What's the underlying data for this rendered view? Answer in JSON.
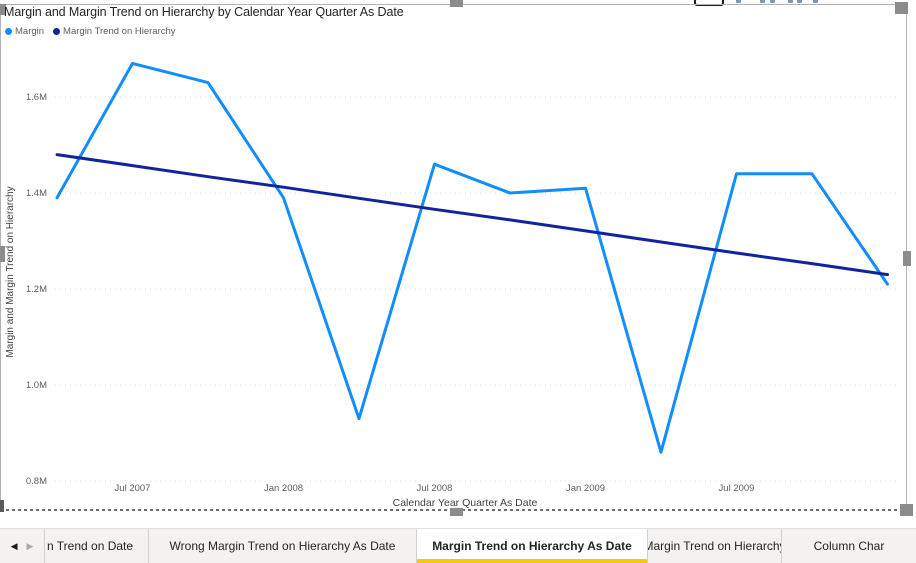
{
  "visual": {
    "title": "Margin and Margin Trend on Hierarchy by Calendar Year Quarter As Date",
    "legend": [
      {
        "label": "Margin",
        "color": "#118DFF"
      },
      {
        "label": "Margin Trend on Hierarchy",
        "color": "#12239E"
      }
    ],
    "y_axis_title": "Margin and Margin Trend on Hierarchy",
    "x_axis_title": "Calendar Year Quarter As Date",
    "header_icons": [
      "focus-mode-icon",
      "pin-icon",
      "filter-icon",
      "more-options-icon"
    ]
  },
  "chart_data": {
    "type": "line",
    "categories": [
      "Apr 2007",
      "Jul 2007",
      "Oct 2007",
      "Jan 2008",
      "Apr 2008",
      "Jul 2008",
      "Oct 2008",
      "Jan 2009",
      "Apr 2009",
      "Jul 2009",
      "Oct 2009",
      "Jan 2010"
    ],
    "x_tick_labels": [
      "Jul 2007",
      "Jan 2008",
      "Jul 2008",
      "Jan 2009",
      "Jul 2009"
    ],
    "y_tick_labels": [
      "0.8M",
      "1.0M",
      "1.2M",
      "1.4M",
      "1.6M"
    ],
    "y_tick_values": [
      0.8,
      1.0,
      1.2,
      1.4,
      1.6
    ],
    "ylim": [
      0.72,
      1.675
    ],
    "unit": "M",
    "grid": "dotted-horizontal",
    "legend_position": "top-left",
    "series": [
      {
        "name": "Margin",
        "color": "#118DFF",
        "values": [
          1.39,
          1.67,
          1.63,
          1.39,
          0.93,
          1.46,
          1.4,
          1.41,
          0.86,
          1.44,
          1.44,
          1.21
        ]
      },
      {
        "name": "Margin Trend on Hierarchy",
        "color": "#12239E",
        "values": [
          1.48,
          1.457,
          1.434,
          1.412,
          1.389,
          1.366,
          1.344,
          1.321,
          1.298,
          1.275,
          1.253,
          1.23
        ]
      }
    ],
    "title": "Margin and Margin Trend on Hierarchy by Calendar Year Quarter As Date",
    "xlabel": "Calendar Year Quarter As Date",
    "ylabel": "Margin and Margin Trend on Hierarchy"
  },
  "tabs": {
    "nav": {
      "back_icon": "◀",
      "forward_icon": "▶"
    },
    "active_underline_color": "#F2C811",
    "items": [
      {
        "label": "n Trend on Date",
        "active": false
      },
      {
        "label": "Wrong Margin Trend on Hierarchy As Date",
        "active": false
      },
      {
        "label": "Margin Trend on Hierarchy As Date",
        "active": true
      },
      {
        "label": "Margin Trend on Hierarchy",
        "active": false
      },
      {
        "label": "Column Char",
        "active": false
      }
    ]
  }
}
